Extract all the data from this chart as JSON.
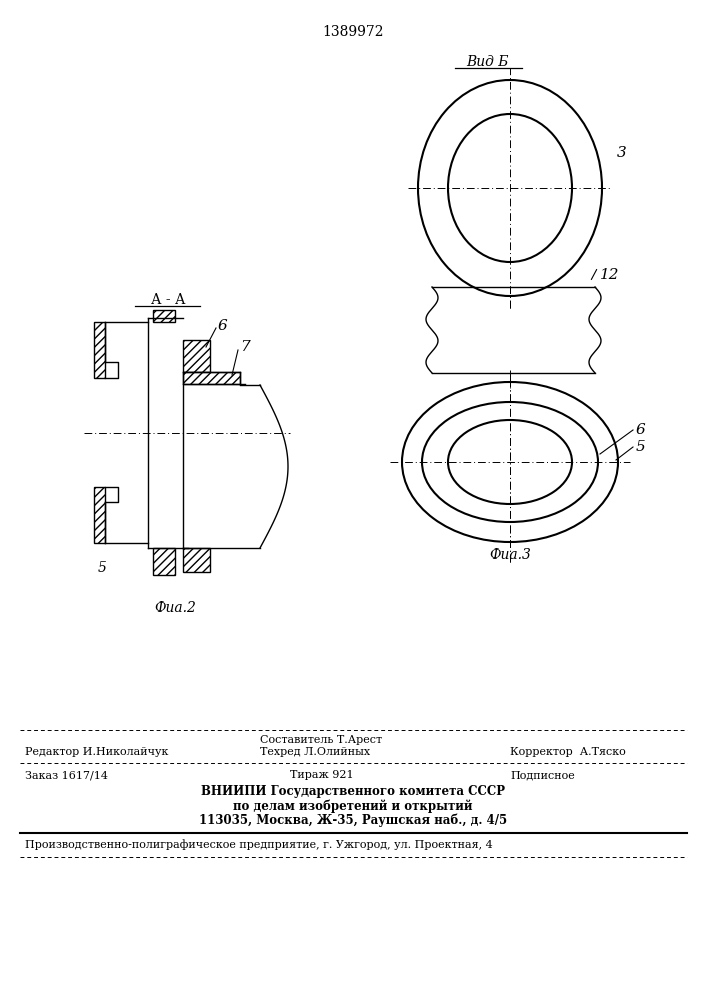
{
  "title_number": "1389972",
  "fig2_label": "Фиа.2",
  "fig3_label": "Фиа.3",
  "view_label": "Вид Б",
  "section_label": "А - А",
  "label_3": "3",
  "label_5": "5",
  "label_6": "6",
  "label_7": "7",
  "label_12": "12",
  "footer_line1_left": "Редактор И.Николайчук",
  "footer_line1_mid1": "Составитель Т.Арест",
  "footer_line1_mid2": "Техред Л.Олийных",
  "footer_line1_right": "Корректор  А.Тяско",
  "footer_line2_left": "Заказ 1617/14",
  "footer_line2_mid": "Тираж 921",
  "footer_line2_right": "Подписное",
  "footer_vnipi1": "ВНИИПИ Государственного комитета СССР",
  "footer_vnipi2": "по делам изобретений и открытий",
  "footer_vnipi3": "113035, Москва, Ж-35, Раушская наб., д. 4/5",
  "footer_bottom": "Производственно-полиграфическое предприятие, г. Ужгород, ул. Проектная, 4",
  "bg_color": "#ffffff",
  "line_color": "#000000"
}
